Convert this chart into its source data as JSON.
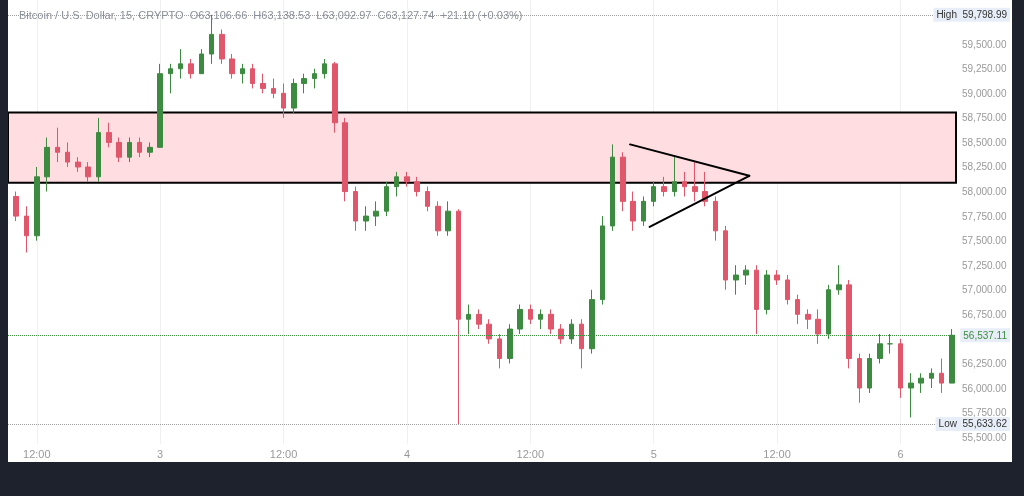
{
  "chart_data": {
    "type": "candlestick",
    "title": "Bitcoin / U.S. Dollar, 15, CRYPTO  O63,106.66  H63,138.53  L63,092.97  C63,127.74  +21.10 (+0.03%)",
    "x": [
      "--09-02T10:00",
      "--09-02T11:00",
      "--09-02T12:00",
      "--09-02T13:00",
      "--09-02T14:00",
      "--09-02T15:00",
      "--09-02T16:00",
      "--09-02T17:00",
      "--09-02T18:00",
      "--09-02T19:00",
      "--09-02T20:00",
      "--09-02T21:00",
      "--09-02T22:00",
      "--09-02T23:00",
      "--09-03T00:00",
      "--09-03T01:00",
      "--09-03T02:00",
      "--09-03T03:00",
      "--09-03T04:00",
      "--09-03T05:00",
      "--09-03T06:00",
      "--09-03T07:00",
      "--09-03T08:00",
      "--09-03T09:00",
      "--09-03T10:00",
      "--09-03T11:00",
      "--09-03T12:00",
      "--09-03T13:00",
      "--09-03T14:00",
      "--09-03T15:00",
      "--09-03T16:00",
      "--09-03T17:00",
      "--09-03T18:00",
      "--09-03T19:00",
      "--09-03T20:00",
      "--09-03T21:00",
      "--09-03T22:00",
      "--09-03T23:00",
      "--09-04T00:00",
      "--09-04T01:00",
      "--09-04T02:00",
      "--09-04T03:00",
      "--09-04T04:00",
      "--09-04T05:00",
      "--09-04T06:00",
      "--09-04T07:00",
      "--09-04T08:00",
      "--09-04T09:00",
      "--09-04T10:00",
      "--09-04T11:00",
      "--09-04T12:00",
      "--09-04T13:00",
      "--09-04T14:00",
      "--09-04T15:00",
      "--09-04T16:00",
      "--09-04T17:00",
      "--09-04T18:00",
      "--09-04T19:00",
      "--09-04T20:00",
      "--09-04T21:00",
      "--09-04T22:00",
      "--09-04T23:00",
      "--09-05T00:00",
      "--09-05T01:00",
      "--09-05T02:00",
      "--09-05T03:00",
      "--09-05T04:00",
      "--09-05T05:00",
      "--09-05T06:00",
      "--09-05T07:00",
      "--09-05T08:00",
      "--09-05T09:00",
      "--09-05T10:00",
      "--09-05T11:00",
      "--09-05T12:00",
      "--09-05T13:00",
      "--09-05T14:00",
      "--09-05T15:00",
      "--09-05T16:00",
      "--09-05T17:00",
      "--09-05T18:00",
      "--09-05T19:00",
      "--09-05T20:00",
      "--09-05T21:00",
      "--09-05T22:00",
      "--09-05T23:00",
      "--09-06T00:00",
      "--09-06T01:00",
      "--09-06T02:00",
      "--09-06T03:00",
      "--09-06T04:00",
      "--09-06T05:00"
    ],
    "ohlc": [
      [
        57950,
        58000,
        57700,
        57750
      ],
      [
        57750,
        57850,
        57380,
        57550
      ],
      [
        57550,
        58250,
        57500,
        58150
      ],
      [
        58150,
        58550,
        58000,
        58450
      ],
      [
        58450,
        58650,
        58300,
        58400
      ],
      [
        58400,
        58500,
        58250,
        58300
      ],
      [
        58300,
        58350,
        58200,
        58250
      ],
      [
        58250,
        58300,
        58100,
        58150
      ],
      [
        58150,
        58750,
        58100,
        58600
      ],
      [
        58600,
        58700,
        58450,
        58500
      ],
      [
        58500,
        58550,
        58300,
        58350
      ],
      [
        58350,
        58550,
        58300,
        58500
      ],
      [
        58500,
        58550,
        58350,
        58400
      ],
      [
        58400,
        58500,
        58350,
        58450
      ],
      [
        58450,
        59300,
        58450,
        59200
      ],
      [
        59200,
        59300,
        59000,
        59250
      ],
      [
        59250,
        59450,
        59150,
        59300
      ],
      [
        59300,
        59350,
        59150,
        59200
      ],
      [
        59200,
        59450,
        59200,
        59400
      ],
      [
        59400,
        59798.99,
        59300,
        59600
      ],
      [
        59600,
        59650,
        59300,
        59350
      ],
      [
        59350,
        59400,
        59150,
        59200
      ],
      [
        59200,
        59300,
        59100,
        59250
      ],
      [
        59250,
        59300,
        59050,
        59100
      ],
      [
        59100,
        59200,
        59000,
        59050
      ],
      [
        59050,
        59150,
        58950,
        59000
      ],
      [
        59000,
        59100,
        58750,
        58850
      ],
      [
        58850,
        59150,
        58800,
        59100
      ],
      [
        59100,
        59200,
        59000,
        59150
      ],
      [
        59150,
        59250,
        59050,
        59200
      ],
      [
        59200,
        59350,
        59150,
        59300
      ],
      [
        59300,
        59320,
        58600,
        58700
      ],
      [
        58700,
        58750,
        57900,
        58000
      ],
      [
        58000,
        58050,
        57600,
        57700
      ],
      [
        57700,
        57850,
        57600,
        57750
      ],
      [
        57750,
        57900,
        57650,
        57800
      ],
      [
        57800,
        58100,
        57750,
        58050
      ],
      [
        58050,
        58200,
        57950,
        58150
      ],
      [
        58150,
        58200,
        58050,
        58100
      ],
      [
        58100,
        58150,
        57950,
        58000
      ],
      [
        58000,
        58050,
        57800,
        57850
      ],
      [
        57850,
        57900,
        57550,
        57600
      ],
      [
        57600,
        57900,
        57550,
        57800
      ],
      [
        57800,
        57820,
        55633.62,
        56700
      ],
      [
        56700,
        56850,
        56550,
        56750
      ],
      [
        56750,
        56800,
        56600,
        56650
      ],
      [
        56650,
        56700,
        56450,
        56500
      ],
      [
        56500,
        56550,
        56200,
        56300
      ],
      [
        56300,
        56650,
        56250,
        56600
      ],
      [
        56600,
        56850,
        56550,
        56800
      ],
      [
        56800,
        56850,
        56650,
        56700
      ],
      [
        56700,
        56800,
        56600,
        56750
      ],
      [
        56750,
        56800,
        56550,
        56600
      ],
      [
        56600,
        56650,
        56450,
        56500
      ],
      [
        56500,
        56700,
        56450,
        56650
      ],
      [
        56650,
        56700,
        56200,
        56400
      ],
      [
        56400,
        57000,
        56350,
        56900
      ],
      [
        56900,
        57750,
        56850,
        57650
      ],
      [
        57650,
        58480,
        57600,
        58350
      ],
      [
        58350,
        58400,
        57800,
        57900
      ],
      [
        57900,
        58000,
        57600,
        57700
      ],
      [
        57700,
        57950,
        57650,
        57900
      ],
      [
        57900,
        58100,
        57850,
        58050
      ],
      [
        58050,
        58150,
        57950,
        58000
      ],
      [
        58000,
        58350,
        57950,
        58100
      ],
      [
        58100,
        58200,
        57950,
        58050
      ],
      [
        58050,
        58300,
        57900,
        58000
      ],
      [
        58000,
        58200,
        57850,
        57900
      ],
      [
        57900,
        57950,
        57500,
        57600
      ],
      [
        57600,
        57650,
        57000,
        57100
      ],
      [
        57100,
        57250,
        56950,
        57150
      ],
      [
        57150,
        57250,
        57050,
        57200
      ],
      [
        57200,
        57250,
        56550,
        56800
      ],
      [
        56800,
        57200,
        56750,
        57150
      ],
      [
        57150,
        57200,
        57050,
        57100
      ],
      [
        57100,
        57150,
        56850,
        56900
      ],
      [
        56900,
        56950,
        56650,
        56750
      ],
      [
        56750,
        56800,
        56600,
        56700
      ],
      [
        56700,
        56800,
        56450,
        56550
      ],
      [
        56550,
        57050,
        56500,
        57000
      ],
      [
        57000,
        57250,
        56950,
        57050
      ],
      [
        57050,
        57100,
        56200,
        56300
      ],
      [
        56300,
        56350,
        55850,
        56000
      ],
      [
        56000,
        56350,
        55950,
        56300
      ],
      [
        56300,
        56550,
        56250,
        56450
      ],
      [
        56450,
        56550,
        56350,
        56450
      ],
      [
        56450,
        56500,
        55900,
        56000
      ],
      [
        56000,
        56150,
        55700,
        56050
      ],
      [
        56050,
        56150,
        55950,
        56100
      ],
      [
        56100,
        56200,
        56000,
        56150
      ],
      [
        56150,
        56300,
        55950,
        56050
      ],
      [
        56050,
        56600,
        56050,
        56537.11
      ]
    ],
    "colors": [
      "#e0566b",
      "#e0566b",
      "#3d8b40",
      "#3d8b40",
      "#e0566b",
      "#e0566b",
      "#e0566b",
      "#e0566b",
      "#3d8b40",
      "#e0566b",
      "#e0566b",
      "#3d8b40",
      "#e0566b",
      "#3d8b40",
      "#3d8b40",
      "#3d8b40",
      "#3d8b40",
      "#e0566b",
      "#3d8b40",
      "#3d8b40",
      "#e0566b",
      "#e0566b",
      "#3d8b40",
      "#e0566b",
      "#e0566b",
      "#e0566b",
      "#e0566b",
      "#3d8b40",
      "#3d8b40",
      "#3d8b40",
      "#3d8b40",
      "#e0566b",
      "#e0566b",
      "#e0566b",
      "#3d8b40",
      "#3d8b40",
      "#3d8b40",
      "#3d8b40",
      "#e0566b",
      "#e0566b",
      "#e0566b",
      "#e0566b",
      "#3d8b40",
      "#e0566b",
      "#3d8b40",
      "#e0566b",
      "#e0566b",
      "#e0566b",
      "#3d8b40",
      "#3d8b40",
      "#e0566b",
      "#3d8b40",
      "#e0566b",
      "#e0566b",
      "#3d8b40",
      "#e0566b",
      "#3d8b40",
      "#3d8b40",
      "#3d8b40",
      "#e0566b",
      "#e0566b",
      "#3d8b40",
      "#3d8b40",
      "#e0566b",
      "#3d8b40",
      "#e0566b",
      "#e0566b",
      "#e0566b",
      "#e0566b",
      "#e0566b",
      "#3d8b40",
      "#3d8b40",
      "#e0566b",
      "#3d8b40",
      "#e0566b",
      "#e0566b",
      "#e0566b",
      "#e0566b",
      "#e0566b",
      "#3d8b40",
      "#3d8b40",
      "#e0566b",
      "#e0566b",
      "#3d8b40",
      "#3d8b40",
      "#3d8b40",
      "#e0566b",
      "#3d8b40",
      "#3d8b40",
      "#3d8b40",
      "#e0566b",
      "#3d8b40"
    ],
    "xlim": [
      "--09-02T09:12",
      "--09-06T05:24"
    ],
    "xticks": [
      {
        "value": "--09-02T12:00",
        "label": "12:00"
      },
      {
        "value": "--09-03",
        "label": "3"
      },
      {
        "value": "--09-03T12:00",
        "label": "12:00"
      },
      {
        "value": "--09-04",
        "label": "4"
      },
      {
        "value": "--09-04T12:00",
        "label": "12:00"
      },
      {
        "value": "--09-05",
        "label": "5"
      },
      {
        "value": "--09-05T12:00",
        "label": "12:00"
      },
      {
        "value": "--09-06",
        "label": "6"
      }
    ],
    "ylim": [
      55430,
      59950
    ],
    "yticks": [
      {
        "value": 55500,
        "label": "55,500.00"
      },
      {
        "value": 55750,
        "label": "55,750.00"
      },
      {
        "value": 56000,
        "label": "56,000.00"
      },
      {
        "value": 56250,
        "label": "56,250.00"
      },
      {
        "value": 56750,
        "label": "56,750.00"
      },
      {
        "value": 57000,
        "label": "57,000.00"
      },
      {
        "value": 57250,
        "label": "57,250.00"
      },
      {
        "value": 57500,
        "label": "57,500.00"
      },
      {
        "value": 57750,
        "label": "57,750.00"
      },
      {
        "value": 58000,
        "label": "58,000.00"
      },
      {
        "value": 58250,
        "label": "58,250.00"
      },
      {
        "value": 58500,
        "label": "58,500.00"
      },
      {
        "value": 58750,
        "label": "58,750.00"
      },
      {
        "value": 59000,
        "label": "59,000.00"
      },
      {
        "value": 59250,
        "label": "59,250.00"
      },
      {
        "value": 59500,
        "label": "59,500.00"
      }
    ],
    "grid": "x",
    "ref_lines": [
      {
        "axis": "y",
        "value": 59798.99,
        "label": "High  59,798.99",
        "color": "#9e9e9e",
        "line_style": "dotted"
      },
      {
        "axis": "y",
        "value": 55633.62,
        "label": "Low  55,633.62",
        "color": "#9e9e9e",
        "line_style": "dotted"
      },
      {
        "axis": "y",
        "value": 56537.11,
        "label": "56,537.11",
        "color": "#3d8b40",
        "line_style": "dotted"
      }
    ],
    "series": [
      {
        "type": "line",
        "color": "#000000",
        "x": [
          "--09-04T21:42",
          "--09-05T09:18"
        ],
        "values": [
          58480,
          58160
        ]
      },
      {
        "type": "line",
        "color": "#000000",
        "x": [
          "--09-04T23:36",
          "--09-05T09:18"
        ],
        "values": [
          57640,
          58160
        ]
      }
    ],
    "bands": [
      {
        "axis": "y",
        "from": 58090,
        "to": 58805,
        "color": "#ffdde0"
      }
    ]
  }
}
